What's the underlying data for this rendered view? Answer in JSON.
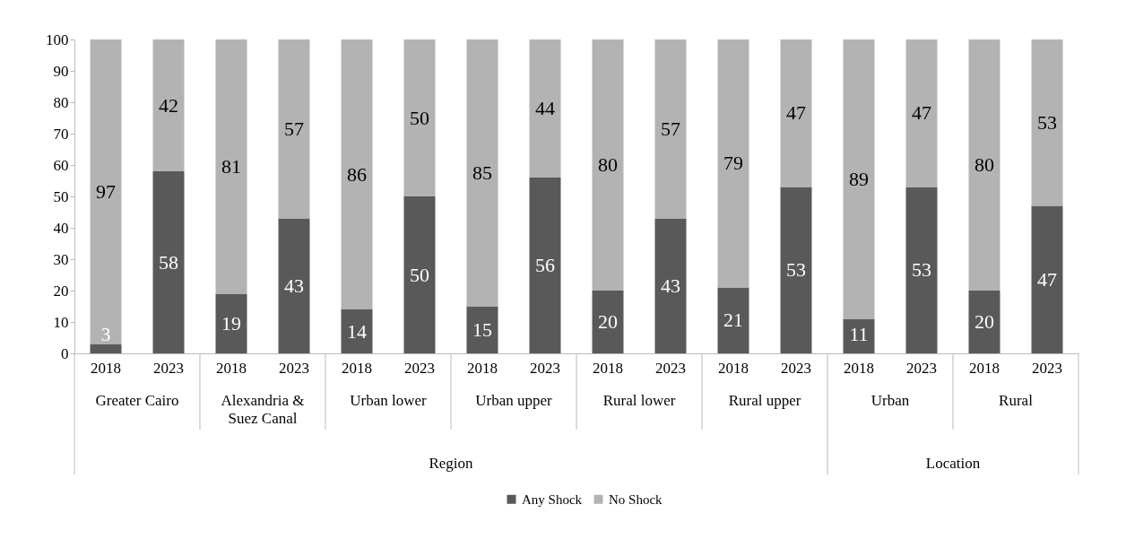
{
  "chart_data": {
    "type": "bar",
    "stacked": true,
    "data_labels": true,
    "legend": "bottom",
    "grid": false,
    "categories": [
      "2018",
      "2023",
      "2018",
      "2023",
      "2018",
      "2023",
      "2018",
      "2023",
      "2018",
      "2023",
      "2018",
      "2023",
      "2018",
      "2023",
      "2018",
      "2023"
    ],
    "annotations": [
      "Greater Cairo",
      "Alexandria & Suez Canal",
      "Urban lower",
      "Urban upper",
      "Rural lower",
      "Rural upper",
      "Urban",
      "Rural",
      "Region",
      "Location"
    ],
    "ylim": [
      0,
      100
    ],
    "yticks": [
      0,
      10,
      20,
      30,
      40,
      50,
      60,
      70,
      80,
      90,
      100
    ],
    "series": [
      {
        "name": "Any Shock",
        "color": "#595959",
        "values": [
          3,
          58,
          19,
          43,
          14,
          50,
          15,
          56,
          20,
          43,
          21,
          53,
          11,
          53,
          20,
          47
        ]
      },
      {
        "name": "No Shock",
        "color": "#b3b3b3",
        "values": [
          97,
          42,
          81,
          57,
          86,
          50,
          85,
          44,
          80,
          57,
          79,
          47,
          89,
          47,
          80,
          53
        ]
      }
    ]
  }
}
